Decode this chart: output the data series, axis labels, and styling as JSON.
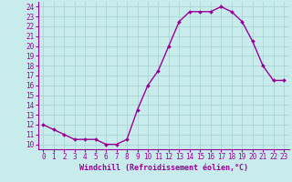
{
  "x": [
    0,
    1,
    2,
    3,
    4,
    5,
    6,
    7,
    8,
    9,
    10,
    11,
    12,
    13,
    14,
    15,
    16,
    17,
    18,
    19,
    20,
    21,
    22,
    23
  ],
  "y": [
    12,
    11.5,
    11,
    10.5,
    10.5,
    10.5,
    10,
    10,
    10.5,
    13.5,
    16,
    17.5,
    20,
    22.5,
    23.5,
    23.5,
    23.5,
    24,
    23.5,
    22.5,
    20.5,
    18,
    16.5,
    16.5
  ],
  "line_color": "#990099",
  "marker": "D",
  "marker_size": 2.0,
  "bg_color": "#c8ecec",
  "grid_color": "#aad4d4",
  "xlabel": "Windchill (Refroidissement éolien,°C)",
  "xlabel_color": "#990099",
  "ylabel_ticks": [
    10,
    11,
    12,
    13,
    14,
    15,
    16,
    17,
    18,
    19,
    20,
    21,
    22,
    23,
    24
  ],
  "xtick_labels": [
    "0",
    "1",
    "2",
    "3",
    "4",
    "5",
    "6",
    "7",
    "8",
    "9",
    "10",
    "11",
    "12",
    "13",
    "14",
    "15",
    "16",
    "17",
    "18",
    "19",
    "20",
    "21",
    "22",
    "23"
  ],
  "ylim": [
    9.5,
    24.5
  ],
  "xlim": [
    -0.5,
    23.5
  ],
  "tick_color": "#990099",
  "tick_fontsize": 5.5,
  "xlabel_fontsize": 6.0,
  "line_width": 1.0
}
